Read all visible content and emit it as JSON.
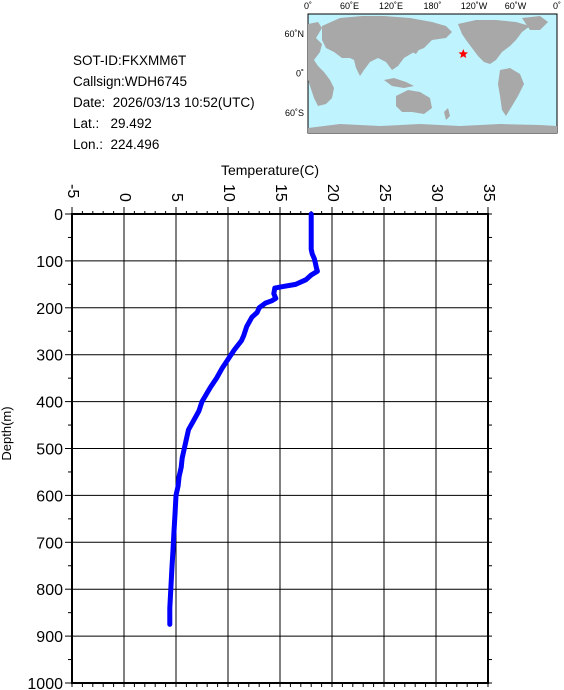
{
  "info": {
    "sot_id": "SOT-ID:FKXMM6T",
    "callsign": "Callsign:WDH6745",
    "date": "Date:  2026/03/13 10:52(UTC)",
    "lat": "Lat.:   29.492",
    "lon": "Lon.:  224.496"
  },
  "map": {
    "lon_labels": [
      "0˚",
      "60˚E",
      "120˚E",
      "180˚",
      "120˚W",
      "60˚W",
      "0˚"
    ],
    "lat_labels": [
      "60˚N",
      "0˚",
      "60˚S"
    ],
    "ocean_color": "#bff4ff",
    "land_color": "#a8a8a8",
    "marker_color": "#ff0000",
    "marker": "star",
    "marker_lat": 29.492,
    "marker_lon": 224.496
  },
  "chart_data": {
    "type": "line",
    "xlabel": "Temperature(C)",
    "ylabel": "Depth(m)",
    "xlim": [
      -5,
      35
    ],
    "ylim": [
      0,
      1000
    ],
    "x_ticks": [
      -5,
      0,
      5,
      10,
      15,
      20,
      25,
      30,
      35
    ],
    "y_ticks": [
      0,
      100,
      200,
      300,
      400,
      500,
      600,
      700,
      800,
      900,
      1000
    ],
    "y_inverted": true,
    "x_axis_position": "top",
    "grid": true,
    "line_color": "#0000ff",
    "series": [
      {
        "x": [
          18.0,
          18.0,
          18.0,
          18.1,
          18.3,
          18.4,
          18.5,
          18.6,
          18.0,
          17.5,
          16.5,
          15.2,
          14.5,
          14.4,
          14.6,
          14.2,
          13.6,
          13.0,
          12.8,
          12.3,
          11.8,
          11.5,
          11.3,
          10.6,
          10.0,
          9.4,
          8.9,
          8.3,
          7.5,
          7.2,
          6.7,
          6.2,
          6.0,
          5.8,
          5.6,
          5.5,
          5.3,
          5.2,
          5.0,
          4.9,
          4.8,
          4.7,
          4.6,
          4.5,
          4.4,
          4.4
        ],
        "y": [
          0,
          40,
          75,
          85,
          95,
          105,
          115,
          122,
          130,
          140,
          150,
          155,
          158,
          170,
          180,
          185,
          190,
          200,
          210,
          220,
          240,
          260,
          270,
          290,
          310,
          330,
          350,
          370,
          400,
          420,
          440,
          460,
          480,
          500,
          520,
          540,
          560,
          580,
          600,
          640,
          680,
          720,
          760,
          800,
          840,
          875
        ]
      }
    ]
  }
}
